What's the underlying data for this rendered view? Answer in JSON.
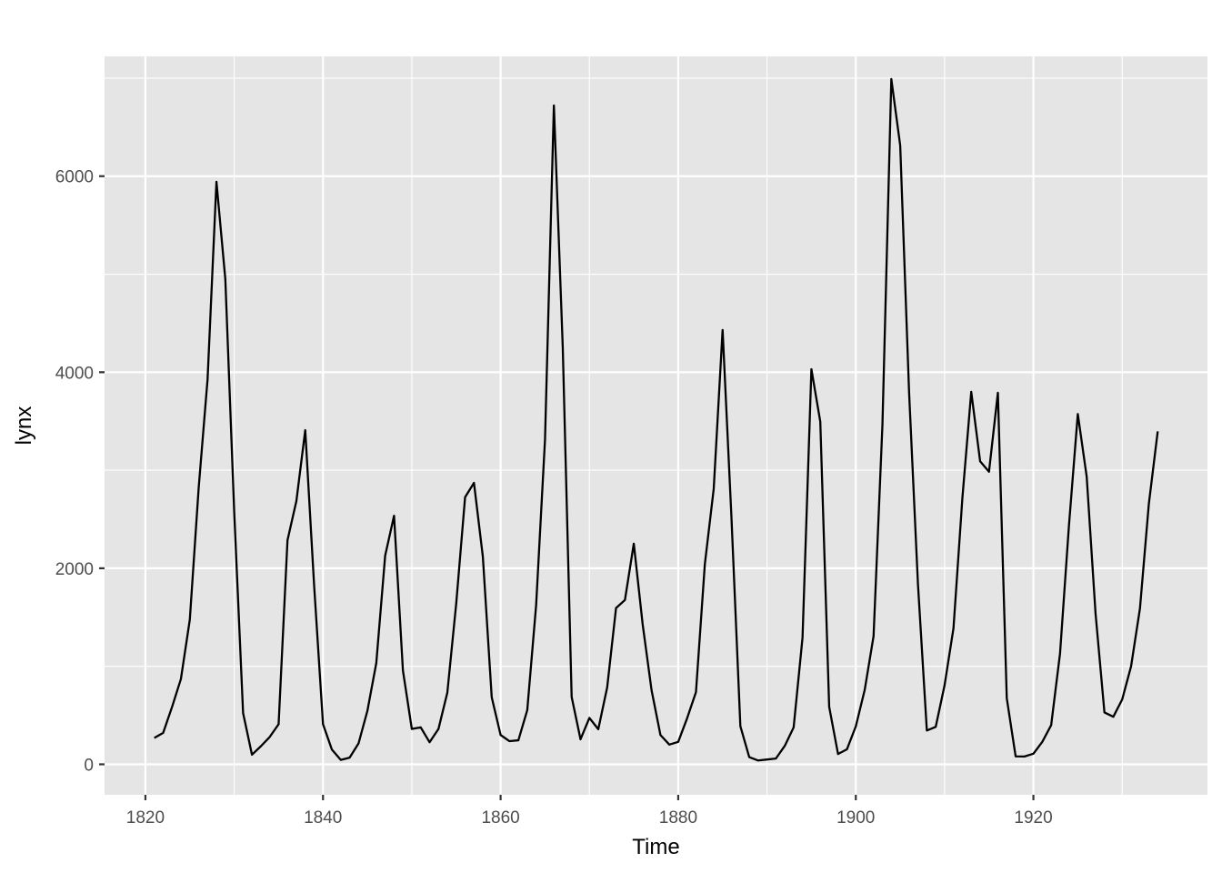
{
  "chart_data": {
    "type": "line",
    "title": "",
    "xlabel": "Time",
    "ylabel": "lynx",
    "xlim": [
      1815.4,
      1939.6
    ],
    "ylim": [
      -311,
      7222
    ],
    "x_ticks": [
      1820,
      1840,
      1860,
      1880,
      1900,
      1920
    ],
    "y_ticks": [
      0,
      2000,
      4000,
      6000
    ],
    "x_tick_labels": [
      "1820",
      "1840",
      "1860",
      "1880",
      "1900",
      "1920"
    ],
    "y_tick_labels": [
      "0",
      "2000",
      "4000",
      "6000"
    ],
    "grid": true,
    "legend": "none",
    "colors": {
      "panel": "#e5e5e5",
      "grid": "#ffffff",
      "line": "#000000"
    },
    "series": [
      {
        "x": [
          1821,
          1822,
          1823,
          1824,
          1825,
          1826,
          1827,
          1828,
          1829,
          1830,
          1831,
          1832,
          1833,
          1834,
          1835,
          1836,
          1837,
          1838,
          1839,
          1840,
          1841,
          1842,
          1843,
          1844,
          1845,
          1846,
          1847,
          1848,
          1849,
          1850,
          1851,
          1852,
          1853,
          1854,
          1855,
          1856,
          1857,
          1858,
          1859,
          1860,
          1861,
          1862,
          1863,
          1864,
          1865,
          1866,
          1867,
          1868,
          1869,
          1870,
          1871,
          1872,
          1873,
          1874,
          1875,
          1876,
          1877,
          1878,
          1879,
          1880,
          1881,
          1882,
          1883,
          1884,
          1885,
          1886,
          1887,
          1888,
          1889,
          1890,
          1891,
          1892,
          1893,
          1894,
          1895,
          1896,
          1897,
          1898,
          1899,
          1900,
          1901,
          1902,
          1903,
          1904,
          1905,
          1906,
          1907,
          1908,
          1909,
          1910,
          1911,
          1912,
          1913,
          1914,
          1915,
          1916,
          1917,
          1918,
          1919,
          1920,
          1921,
          1922,
          1923,
          1924,
          1925,
          1926,
          1927,
          1928,
          1929,
          1930,
          1931,
          1932,
          1933,
          1934
        ],
        "values": [
          269,
          321,
          585,
          871,
          1475,
          2821,
          3928,
          5943,
          4950,
          2577,
          523,
          98,
          184,
          279,
          409,
          2285,
          2685,
          3409,
          1824,
          409,
          151,
          45,
          68,
          213,
          546,
          1033,
          2129,
          2536,
          957,
          361,
          377,
          225,
          360,
          731,
          1638,
          2725,
          2871,
          2119,
          684,
          299,
          236,
          245,
          552,
          1623,
          3311,
          6721,
          4254,
          687,
          255,
          473,
          358,
          784,
          1594,
          1676,
          2251,
          1426,
          756,
          299,
          201,
          229,
          469,
          736,
          2042,
          2811,
          4431,
          2511,
          389,
          73,
          39,
          49,
          59,
          188,
          377,
          1292,
          4031,
          3495,
          587,
          105,
          153,
          387,
          758,
          1307,
          3465,
          6991,
          6313,
          3794,
          1836,
          345,
          382,
          808,
          1388,
          2713,
          3800,
          3091,
          2985,
          3790,
          674,
          81,
          80,
          108,
          229,
          399,
          1132,
          2432,
          3574,
          2935,
          1537,
          529,
          485,
          662,
          1000,
          1590,
          2657,
          3396
        ]
      }
    ]
  }
}
